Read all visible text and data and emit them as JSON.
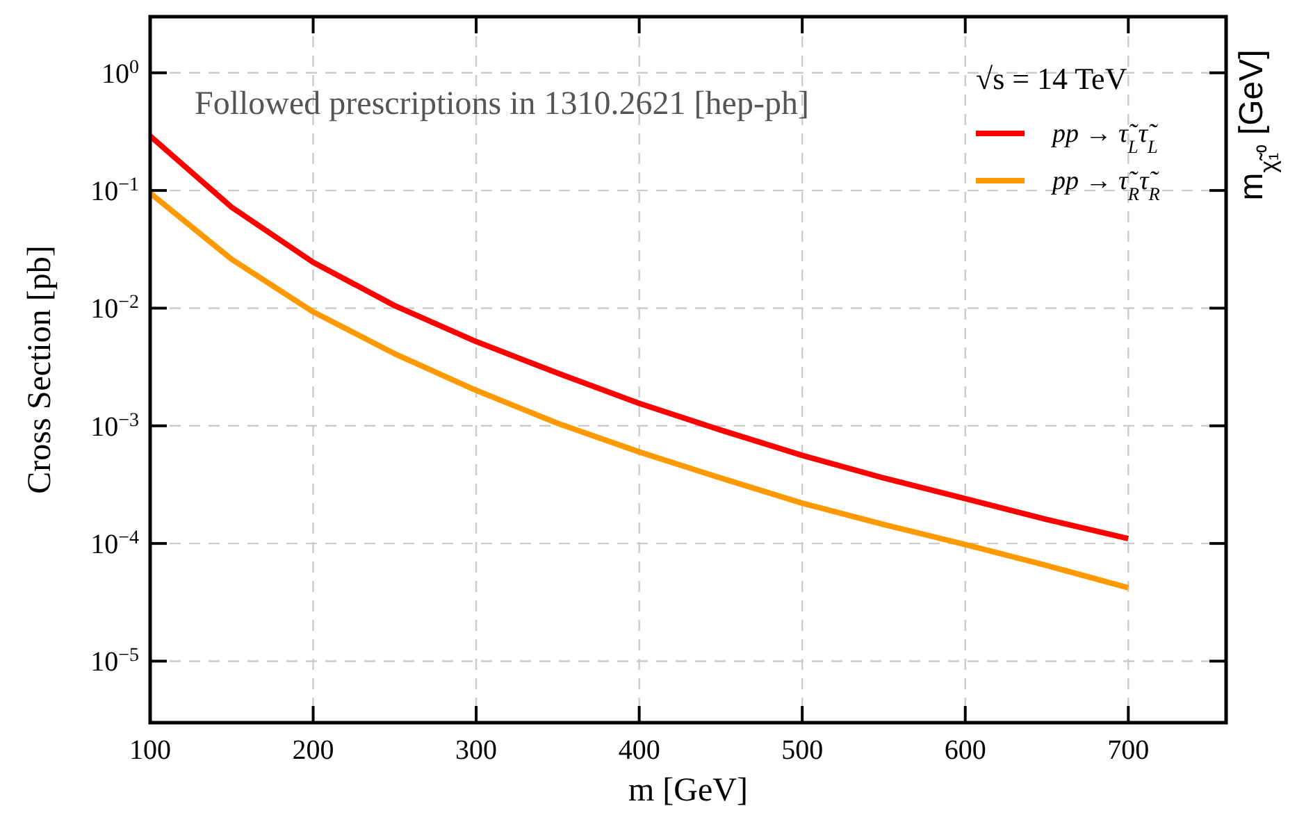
{
  "chart_data": {
    "type": "line",
    "xlabel": "m [GeV]",
    "ylabel": "Cross Section [pb]",
    "y2label": "m$_{χ̃₁⁰}$ [GeV]",
    "legend_title": "√s = 14 TeV",
    "annotations": [
      "Followed prescriptions in 1310.2621 [hep-ph]"
    ],
    "x": [
      100,
      150,
      200,
      250,
      300,
      350,
      400,
      450,
      500,
      550,
      600,
      650,
      700
    ],
    "series": [
      {
        "name": "pp → τ̃$_{L}$τ̃$_{L}$",
        "color": "#ff0000",
        "values": [
          0.29,
          0.072,
          0.0245,
          0.0105,
          0.0052,
          0.0028,
          0.00155,
          0.00092,
          0.00056,
          0.00036,
          0.00024,
          0.00016,
          0.00011
        ]
      },
      {
        "name": "pp → τ̃$_{R}$τ̃$_{R}$",
        "color": "#ff9900",
        "values": [
          0.095,
          0.026,
          0.0093,
          0.0041,
          0.002,
          0.00105,
          0.0006,
          0.00036,
          0.00022,
          0.000145,
          9.8e-05,
          6.5e-05,
          4.2e-05
        ]
      }
    ],
    "xlim": [
      100,
      760
    ],
    "ylim": [
      3e-06,
      3
    ],
    "xticks": [
      100,
      200,
      300,
      400,
      500,
      600,
      700
    ],
    "yticks": [
      {
        "value": 1,
        "label": "10$^{0}$"
      },
      {
        "value": 0.1,
        "label": "10$^{−1}$"
      },
      {
        "value": 0.01,
        "label": "10$^{−2}$"
      },
      {
        "value": 0.001,
        "label": "10$^{−3}$"
      },
      {
        "value": 0.0001,
        "label": "10$^{−4}$"
      },
      {
        "value": 1e-05,
        "label": "10$^{−5}$"
      }
    ],
    "log": "y",
    "grid": true,
    "legend": "top right",
    "line_style": "solid",
    "marker": "none"
  }
}
